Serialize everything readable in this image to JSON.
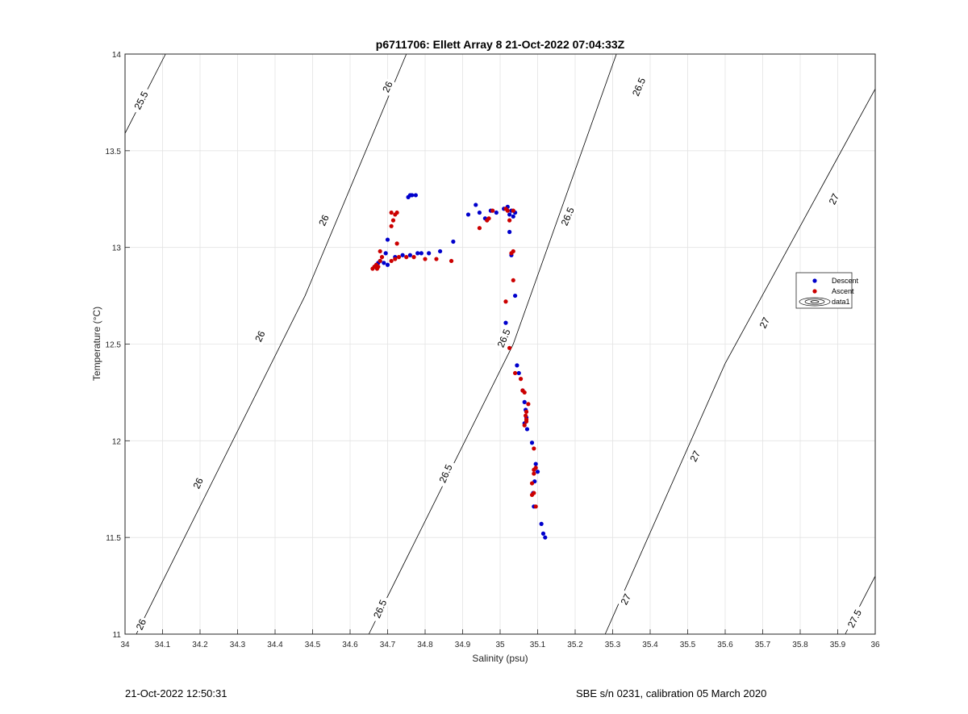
{
  "footer": {
    "timestamp": "21-Oct-2022 12:50:31",
    "instrument": "SBE s/n 0231, calibration 05 March 2020"
  },
  "chart_data": {
    "type": "scatter",
    "title": "p6711706: Ellett Array 8 21-Oct-2022 07:04:33Z",
    "xlabel": "Salinity (psu)",
    "ylabel": "Temperature (°C)",
    "xlim": [
      34,
      36
    ],
    "ylim": [
      11,
      14
    ],
    "xticks": [
      "34",
      "34.1",
      "34.2",
      "34.3",
      "34.4",
      "34.5",
      "34.6",
      "34.7",
      "34.8",
      "34.9",
      "35",
      "35.1",
      "35.2",
      "35.3",
      "35.4",
      "35.5",
      "35.6",
      "35.7",
      "35.8",
      "35.9",
      "36"
    ],
    "yticks": [
      "11",
      "11.5",
      "12",
      "12.5",
      "13",
      "13.5",
      "14"
    ],
    "grid": true,
    "legend_position": "right",
    "legend": [
      {
        "label": "Descent",
        "color": "#0000cc",
        "marker": "dot"
      },
      {
        "label": "Ascent",
        "color": "#cc0000",
        "marker": "dot"
      },
      {
        "label": "data1",
        "color": "#000000",
        "marker": "contour"
      }
    ],
    "contours": [
      {
        "label": "25.5",
        "points": [
          [
            34.0,
            13.59
          ],
          [
            34.108,
            14.0
          ]
        ],
        "labels_at": [
          [
            34.043,
            13.76
          ]
        ]
      },
      {
        "label": "26",
        "points": [
          [
            34.03,
            11.0
          ],
          [
            34.48,
            12.75
          ],
          [
            34.75,
            14.0
          ]
        ],
        "labels_at": [
          [
            34.043,
            11.05
          ],
          [
            34.195,
            11.78
          ],
          [
            34.36,
            12.54
          ],
          [
            34.53,
            13.14
          ],
          [
            34.7,
            13.83
          ]
        ]
      },
      {
        "label": "26.5",
        "points": [
          [
            34.65,
            11.0
          ],
          [
            35.035,
            12.5
          ],
          [
            35.31,
            14.0
          ]
        ],
        "labels_at": [
          [
            34.68,
            11.13
          ],
          [
            34.855,
            11.83
          ],
          [
            35.01,
            12.53
          ],
          [
            35.18,
            13.16
          ],
          [
            35.37,
            13.83
          ]
        ]
      },
      {
        "label": "27",
        "points": [
          [
            35.28,
            11.0
          ],
          [
            35.6,
            12.4
          ],
          [
            36.0,
            13.82
          ]
        ],
        "labels_at": [
          [
            35.335,
            11.18
          ],
          [
            35.52,
            11.92
          ],
          [
            35.705,
            12.61
          ],
          [
            35.89,
            13.25
          ]
        ]
      },
      {
        "label": "27.5",
        "points": [
          [
            35.92,
            11.0
          ],
          [
            36.0,
            11.3
          ]
        ],
        "labels_at": [
          [
            35.945,
            11.08
          ]
        ]
      }
    ],
    "series": [
      {
        "name": "Descent",
        "color": "#0000cc",
        "points": [
          [
            34.665,
            12.9
          ],
          [
            34.67,
            12.91
          ],
          [
            34.675,
            12.92
          ],
          [
            34.68,
            12.93
          ],
          [
            34.69,
            12.92
          ],
          [
            34.7,
            12.91
          ],
          [
            34.695,
            12.97
          ],
          [
            34.7,
            13.04
          ],
          [
            34.72,
            12.95
          ],
          [
            34.74,
            12.96
          ],
          [
            34.76,
            12.96
          ],
          [
            34.78,
            12.97
          ],
          [
            34.79,
            12.97
          ],
          [
            34.81,
            12.97
          ],
          [
            34.84,
            12.98
          ],
          [
            34.875,
            13.03
          ],
          [
            34.755,
            13.26
          ],
          [
            34.76,
            13.27
          ],
          [
            34.765,
            13.27
          ],
          [
            34.775,
            13.27
          ],
          [
            34.915,
            13.17
          ],
          [
            34.935,
            13.22
          ],
          [
            34.945,
            13.18
          ],
          [
            34.96,
            13.15
          ],
          [
            34.975,
            13.19
          ],
          [
            34.99,
            13.18
          ],
          [
            35.01,
            13.2
          ],
          [
            35.02,
            13.21
          ],
          [
            35.025,
            13.17
          ],
          [
            35.03,
            13.19
          ],
          [
            35.035,
            13.16
          ],
          [
            35.04,
            13.18
          ],
          [
            35.025,
            13.08
          ],
          [
            35.03,
            12.96
          ],
          [
            35.04,
            12.75
          ],
          [
            35.015,
            12.61
          ],
          [
            35.045,
            12.39
          ],
          [
            35.05,
            12.35
          ],
          [
            35.06,
            12.26
          ],
          [
            35.065,
            12.2
          ],
          [
            35.068,
            12.16
          ],
          [
            35.07,
            12.12
          ],
          [
            35.065,
            12.09
          ],
          [
            35.072,
            12.06
          ],
          [
            35.085,
            11.99
          ],
          [
            35.095,
            11.88
          ],
          [
            35.1,
            11.84
          ],
          [
            35.092,
            11.79
          ],
          [
            35.088,
            11.73
          ],
          [
            35.09,
            11.66
          ],
          [
            35.11,
            11.57
          ],
          [
            35.115,
            11.52
          ],
          [
            35.12,
            11.5
          ]
        ]
      },
      {
        "name": "Ascent",
        "color": "#cc0000",
        "points": [
          [
            34.66,
            12.89
          ],
          [
            34.665,
            12.9
          ],
          [
            34.67,
            12.91
          ],
          [
            34.672,
            12.89
          ],
          [
            34.675,
            12.9
          ],
          [
            34.68,
            12.93
          ],
          [
            34.685,
            12.95
          ],
          [
            34.68,
            12.98
          ],
          [
            34.71,
            12.93
          ],
          [
            34.72,
            12.94
          ],
          [
            34.73,
            12.95
          ],
          [
            34.75,
            12.95
          ],
          [
            34.77,
            12.95
          ],
          [
            34.8,
            12.94
          ],
          [
            34.83,
            12.94
          ],
          [
            34.87,
            12.93
          ],
          [
            34.71,
            13.11
          ],
          [
            34.715,
            13.14
          ],
          [
            34.72,
            13.17
          ],
          [
            34.725,
            13.18
          ],
          [
            34.71,
            13.18
          ],
          [
            34.725,
            13.02
          ],
          [
            34.945,
            13.1
          ],
          [
            34.965,
            13.14
          ],
          [
            34.97,
            13.15
          ],
          [
            34.98,
            13.19
          ],
          [
            35.015,
            13.2
          ],
          [
            35.02,
            13.19
          ],
          [
            35.025,
            13.14
          ],
          [
            35.035,
            13.19
          ],
          [
            35.035,
            12.98
          ],
          [
            35.03,
            12.97
          ],
          [
            35.035,
            12.83
          ],
          [
            35.015,
            12.72
          ],
          [
            35.025,
            12.48
          ],
          [
            35.04,
            12.35
          ],
          [
            35.055,
            12.32
          ],
          [
            35.06,
            12.26
          ],
          [
            35.065,
            12.25
          ],
          [
            35.075,
            12.19
          ],
          [
            35.07,
            12.15
          ],
          [
            35.068,
            12.13
          ],
          [
            35.07,
            12.1
          ],
          [
            35.065,
            12.08
          ],
          [
            35.07,
            12.11
          ],
          [
            35.09,
            11.96
          ],
          [
            35.095,
            11.86
          ],
          [
            35.09,
            11.85
          ],
          [
            35.09,
            11.83
          ],
          [
            35.085,
            11.78
          ],
          [
            35.09,
            11.73
          ],
          [
            35.085,
            11.72
          ],
          [
            35.095,
            11.66
          ]
        ]
      }
    ]
  }
}
